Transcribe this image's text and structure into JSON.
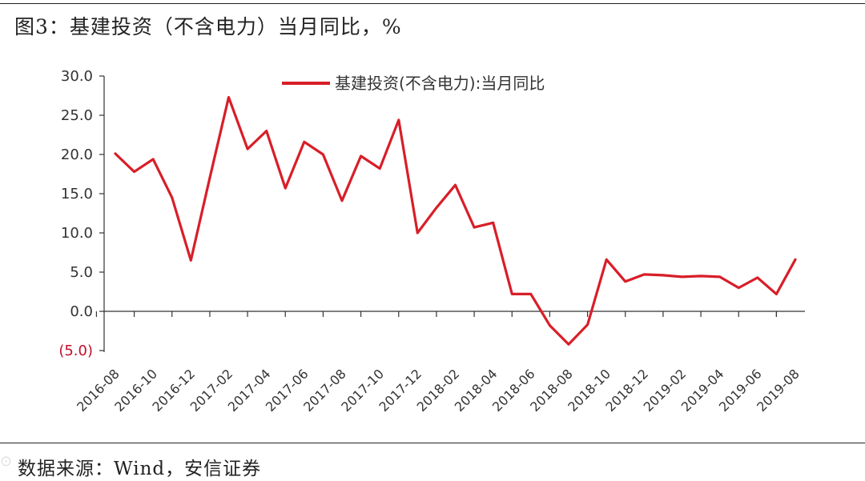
{
  "header": {
    "title": "图3：基建投资（不含电力）当月同比，%"
  },
  "footer": {
    "source": "数据来源：Wind，安信证券"
  },
  "colors": {
    "series": "#d81e28",
    "negative_tick": "#c0102a",
    "axis": "#333333"
  },
  "chart_data": {
    "type": "line",
    "title": "",
    "xlabel": "",
    "ylabel": "",
    "ylim": [
      -5,
      30
    ],
    "yticks": [
      30,
      25,
      20,
      15,
      10,
      5,
      0,
      -5
    ],
    "ytick_labels": [
      "30.0",
      "25.0",
      "20.0",
      "15.0",
      "10.0",
      "5.0",
      "0.0",
      "(5.0)"
    ],
    "xtick_labels": [
      "2016-08",
      "2016-10",
      "2016-12",
      "2017-02",
      "2017-04",
      "2017-06",
      "2017-08",
      "2017-10",
      "2017-12",
      "2018-02",
      "2018-04",
      "2018-06",
      "2018-08",
      "2018-10",
      "2018-12",
      "2019-02",
      "2019-04",
      "2019-06",
      "2019-08"
    ],
    "grid": false,
    "legend": "top",
    "series": [
      {
        "name": "基建投资(不含电力):当月同比",
        "color": "#d81e28",
        "x": [
          "2016-08",
          "2016-09",
          "2016-10",
          "2016-11",
          "2016-12",
          "2017-01",
          "2017-02",
          "2017-03",
          "2017-04",
          "2017-05",
          "2017-06",
          "2017-07",
          "2017-08",
          "2017-09",
          "2017-10",
          "2017-11",
          "2017-12",
          "2018-01",
          "2018-02",
          "2018-03",
          "2018-04",
          "2018-05",
          "2018-06",
          "2018-07",
          "2018-08",
          "2018-09",
          "2018-10",
          "2018-11",
          "2018-12",
          "2019-01",
          "2019-02",
          "2019-03",
          "2019-04",
          "2019-05",
          "2019-06",
          "2019-07",
          "2019-08"
        ],
        "values": [
          20.1,
          17.8,
          19.4,
          14.5,
          6.5,
          17.0,
          27.3,
          20.7,
          23.0,
          15.7,
          21.6,
          20.0,
          14.1,
          19.8,
          18.2,
          24.4,
          10.0,
          13.2,
          16.1,
          10.7,
          11.3,
          2.2,
          2.2,
          -1.8,
          -4.2,
          -1.7,
          6.6,
          3.8,
          4.7,
          4.6,
          4.4,
          4.5,
          4.4,
          3.0,
          4.3,
          2.2,
          6.6
        ]
      }
    ]
  }
}
